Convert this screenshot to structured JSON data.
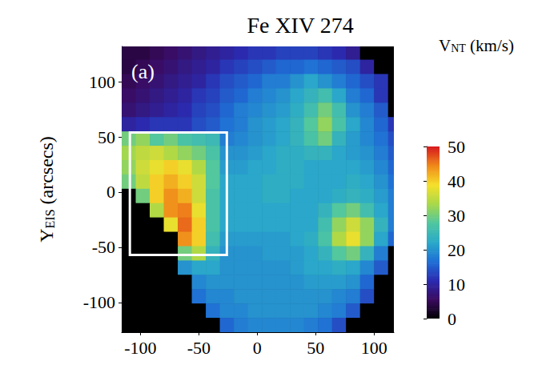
{
  "chart_data": {
    "type": "heatmap",
    "title": "Fe XIV 274",
    "panel_label": "(a)",
    "ylabel": {
      "main": "Y",
      "sub": "EIS",
      "rest": " (arcsecs)"
    },
    "xlim": [
      -116,
      117
    ],
    "ylim": [
      -127,
      132
    ],
    "xticks": [
      -100,
      -50,
      0,
      50,
      100
    ],
    "yticks": [
      -100,
      -50,
      0,
      50,
      100
    ],
    "grid": false,
    "x": [
      -110,
      -98,
      -86,
      -74,
      -62,
      -50,
      -38,
      -26,
      -14,
      -2,
      10,
      22,
      34,
      46,
      58,
      70,
      82,
      94,
      106,
      118
    ],
    "y": [
      126.5,
      113.5,
      100.5,
      87.5,
      74.5,
      61.5,
      48.5,
      35.5,
      22.5,
      9.5,
      -3.5,
      -16.5,
      -29.5,
      -42.5,
      -55.5,
      -68.5,
      -81.5,
      -94.5,
      -107.5,
      -120.5
    ],
    "z": [
      [
        4,
        4,
        5,
        6,
        7,
        8,
        9,
        10,
        11,
        12,
        12,
        13,
        13,
        13,
        12,
        11,
        9,
        0,
        0,
        0
      ],
      [
        4,
        5,
        6,
        7,
        8,
        9,
        10,
        12,
        13,
        14,
        15,
        16,
        16,
        17,
        16,
        15,
        14,
        10,
        0,
        0
      ],
      [
        5,
        6,
        7,
        8,
        9,
        10,
        12,
        14,
        15,
        16,
        18,
        18,
        20,
        22,
        20,
        18,
        16,
        14,
        12,
        0
      ],
      [
        6,
        7,
        8,
        9,
        10,
        12,
        13,
        15,
        16,
        18,
        19,
        20,
        22,
        24,
        26,
        22,
        18,
        16,
        12,
        0
      ],
      [
        7,
        8,
        9,
        10,
        11,
        13,
        14,
        16,
        18,
        19,
        20,
        21,
        23,
        26,
        30,
        26,
        20,
        18,
        15,
        0
      ],
      [
        10,
        11,
        12,
        12,
        12,
        14,
        15,
        17,
        18,
        20,
        21,
        22,
        24,
        28,
        32,
        27,
        22,
        19,
        16,
        12
      ],
      [
        30,
        32,
        28,
        30,
        27,
        26,
        25,
        18,
        19,
        20,
        21,
        22,
        24,
        27,
        30,
        24,
        21,
        19,
        17,
        14
      ],
      [
        33,
        35,
        36,
        34,
        32,
        30,
        27,
        20,
        20,
        21,
        22,
        23,
        23,
        24,
        24,
        22,
        21,
        20,
        18,
        15
      ],
      [
        32,
        36,
        38,
        40,
        38,
        34,
        28,
        21,
        21,
        22,
        22,
        23,
        23,
        22,
        22,
        22,
        22,
        21,
        19,
        16
      ],
      [
        30,
        35,
        40,
        42,
        40,
        36,
        28,
        22,
        22,
        22,
        23,
        23,
        23,
        22,
        22,
        22,
        23,
        22,
        20,
        17
      ],
      [
        0,
        30,
        40,
        44,
        42,
        36,
        27,
        22,
        22,
        22,
        23,
        23,
        22,
        22,
        22,
        23,
        24,
        23,
        21,
        18
      ],
      [
        0,
        0,
        34,
        44,
        45,
        38,
        27,
        22,
        22,
        22,
        22,
        22,
        22,
        22,
        24,
        28,
        30,
        26,
        22,
        18
      ],
      [
        0,
        0,
        0,
        38,
        46,
        40,
        27,
        22,
        22,
        22,
        22,
        22,
        22,
        22,
        26,
        32,
        36,
        32,
        24,
        18
      ],
      [
        0,
        0,
        0,
        0,
        44,
        40,
        26,
        21,
        21,
        21,
        21,
        21,
        22,
        23,
        27,
        34,
        38,
        32,
        22,
        16
      ],
      [
        0,
        0,
        0,
        0,
        30,
        34,
        24,
        20,
        20,
        20,
        21,
        21,
        21,
        22,
        24,
        28,
        30,
        24,
        18,
        0
      ],
      [
        0,
        0,
        0,
        0,
        20,
        22,
        22,
        20,
        20,
        20,
        20,
        20,
        21,
        22,
        22,
        23,
        22,
        19,
        15,
        0
      ],
      [
        0,
        0,
        0,
        0,
        0,
        19,
        20,
        20,
        20,
        20,
        20,
        20,
        20,
        21,
        21,
        21,
        20,
        16,
        0,
        0
      ],
      [
        0,
        0,
        0,
        0,
        0,
        17,
        19,
        19,
        20,
        20,
        20,
        20,
        20,
        20,
        20,
        19,
        18,
        14,
        0,
        0
      ],
      [
        0,
        0,
        0,
        0,
        0,
        0,
        17,
        19,
        19,
        20,
        20,
        20,
        20,
        20,
        19,
        18,
        15,
        0,
        0,
        0
      ],
      [
        0,
        0,
        0,
        0,
        0,
        0,
        0,
        16,
        18,
        19,
        19,
        19,
        19,
        18,
        17,
        14,
        0,
        0,
        0,
        0
      ]
    ],
    "box": {
      "x": [
        -109,
        -26
      ],
      "y": [
        -57,
        54
      ]
    },
    "colorbar": {
      "label": {
        "main": "V",
        "sub": "NT",
        "rest": " (km/s)"
      },
      "range": [
        0,
        50
      ],
      "ticks": [
        0,
        10,
        20,
        30,
        40,
        50
      ]
    }
  }
}
